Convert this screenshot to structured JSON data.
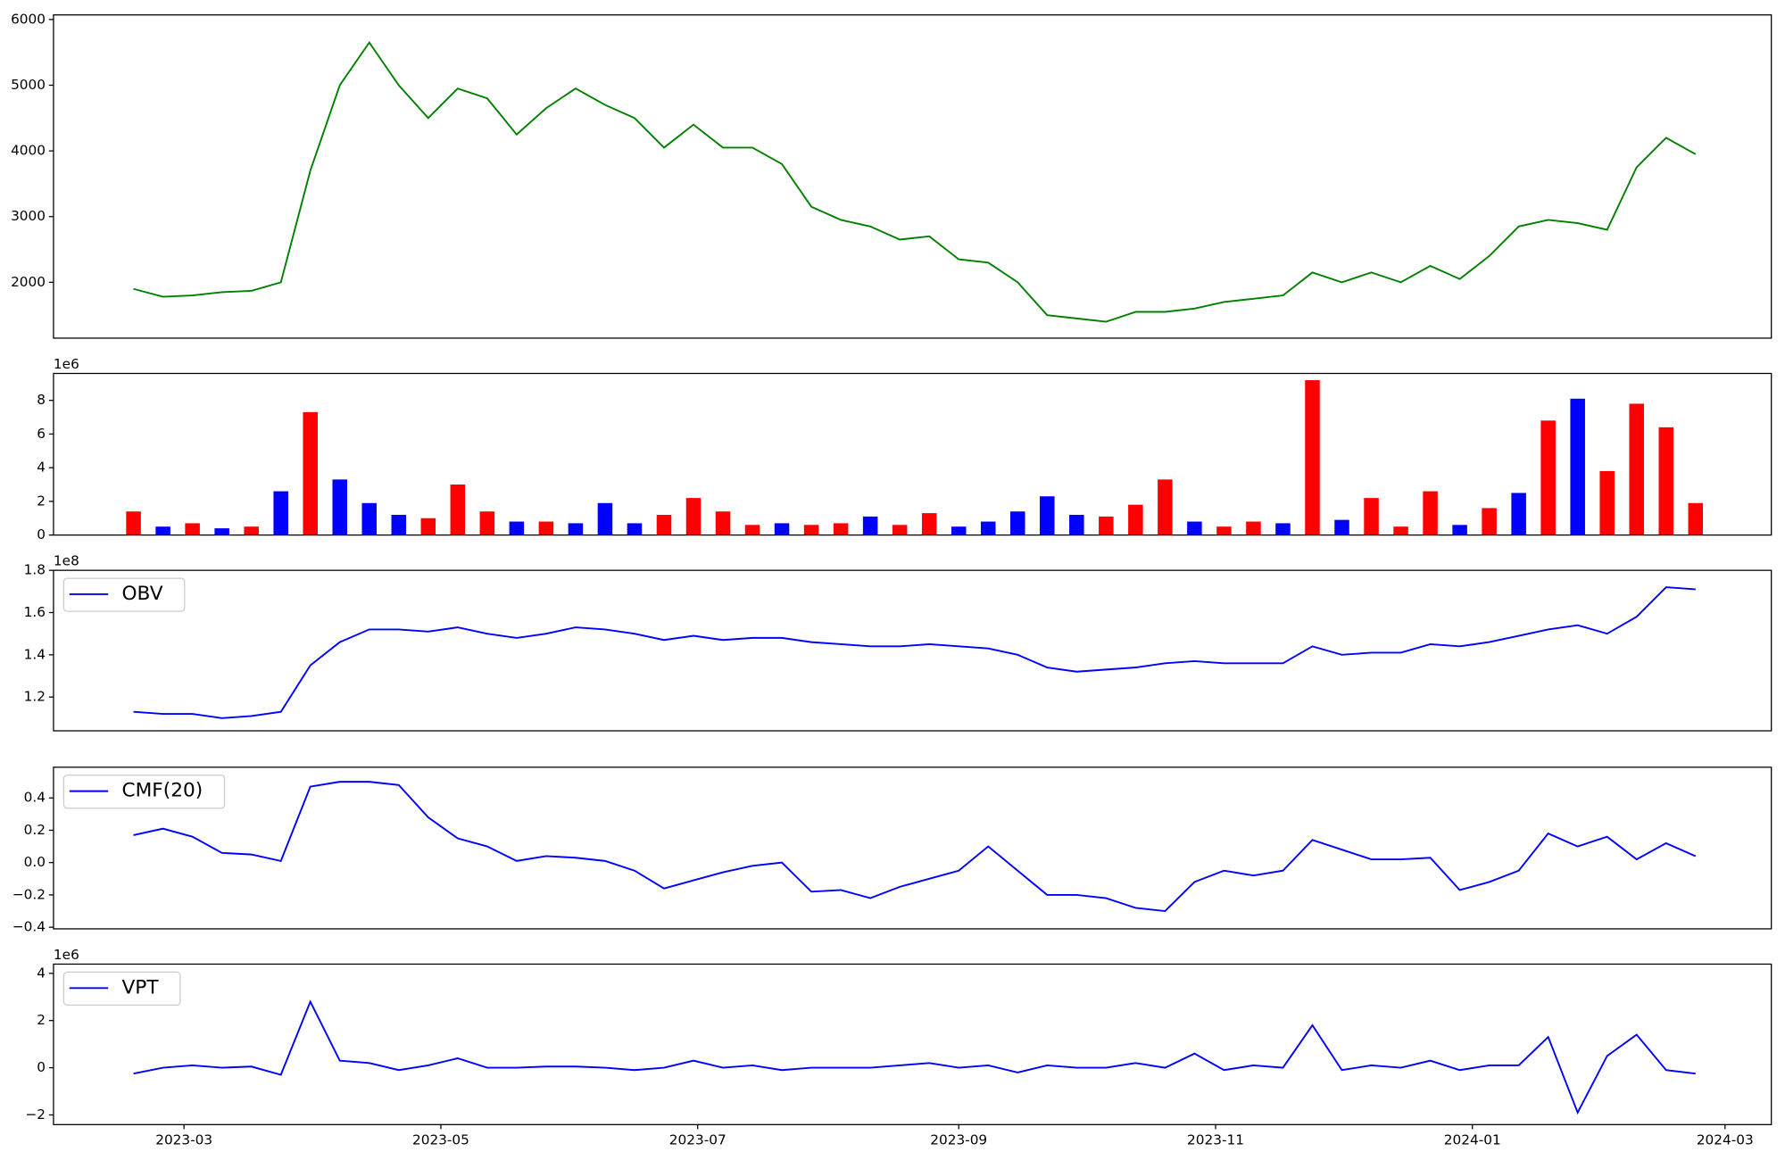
{
  "chart_data": [
    {
      "type": "line",
      "color": "#008000",
      "x": [
        "2023-02-17",
        "2023-02-24",
        "2023-03-03",
        "2023-03-10",
        "2023-03-17",
        "2023-03-24",
        "2023-03-31",
        "2023-04-07",
        "2023-04-14",
        "2023-04-21",
        "2023-04-28",
        "2023-05-05",
        "2023-05-12",
        "2023-05-19",
        "2023-05-26",
        "2023-06-02",
        "2023-06-09",
        "2023-06-16",
        "2023-06-23",
        "2023-06-30",
        "2023-07-07",
        "2023-07-14",
        "2023-07-21",
        "2023-07-28",
        "2023-08-04",
        "2023-08-11",
        "2023-08-18",
        "2023-08-25",
        "2023-09-01",
        "2023-09-08",
        "2023-09-15",
        "2023-09-22",
        "2023-09-29",
        "2023-10-06",
        "2023-10-13",
        "2023-10-20",
        "2023-10-27",
        "2023-11-03",
        "2023-11-10",
        "2023-11-17",
        "2023-11-24",
        "2023-12-01",
        "2023-12-08",
        "2023-12-15",
        "2023-12-22",
        "2023-12-29",
        "2024-01-05",
        "2024-01-12",
        "2024-01-19",
        "2024-01-26",
        "2024-02-02",
        "2024-02-09",
        "2024-02-16",
        "2024-02-23"
      ],
      "values": [
        1900,
        1780,
        1800,
        1850,
        1870,
        2000,
        3700,
        5000,
        5650,
        5000,
        4500,
        4950,
        4800,
        4250,
        4650,
        4950,
        4700,
        4500,
        4050,
        4400,
        4050,
        4050,
        3800,
        3150,
        2950,
        2850,
        2650,
        2700,
        2350,
        2300,
        2000,
        1500,
        1450,
        1400,
        1550,
        1550,
        1600,
        1700,
        1750,
        1800,
        2150,
        2000,
        2150,
        2000,
        2250,
        2050,
        2400,
        2850,
        2950,
        2900,
        2800,
        3750,
        4200,
        3950
      ],
      "ylim": [
        1150,
        6070
      ],
      "yticks": [
        2000,
        3000,
        4000,
        5000,
        6000
      ]
    },
    {
      "type": "bar",
      "y_offset_label": "1e6",
      "values": [
        1.4,
        0.5,
        0.7,
        0.4,
        0.5,
        2.6,
        7.3,
        3.3,
        1.9,
        1.2,
        1.0,
        3.0,
        1.4,
        0.8,
        0.8,
        0.7,
        1.9,
        0.7,
        1.2,
        2.2,
        1.4,
        0.6,
        0.7,
        0.6,
        0.7,
        1.1,
        0.6,
        1.3,
        0.5,
        0.8,
        1.4,
        2.3,
        1.2,
        1.1,
        1.8,
        3.3,
        0.8,
        0.5,
        0.8,
        0.7,
        9.2,
        0.9,
        2.2,
        0.5,
        2.6,
        0.6,
        1.6,
        2.5,
        6.8,
        8.1,
        3.8,
        7.8,
        6.4,
        1.9
      ],
      "colors": [
        "#ff0000",
        "#0000ff",
        "#ff0000",
        "#0000ff",
        "#ff0000",
        "#0000ff",
        "#ff0000",
        "#0000ff",
        "#0000ff",
        "#0000ff",
        "#ff0000",
        "#ff0000",
        "#ff0000",
        "#0000ff",
        "#ff0000",
        "#0000ff",
        "#0000ff",
        "#0000ff",
        "#ff0000",
        "#ff0000",
        "#ff0000",
        "#ff0000",
        "#0000ff",
        "#ff0000",
        "#ff0000",
        "#0000ff",
        "#ff0000",
        "#ff0000",
        "#0000ff",
        "#0000ff",
        "#0000ff",
        "#0000ff",
        "#0000ff",
        "#ff0000",
        "#ff0000",
        "#ff0000",
        "#0000ff",
        "#ff0000",
        "#ff0000",
        "#0000ff",
        "#ff0000",
        "#0000ff",
        "#ff0000",
        "#ff0000",
        "#ff0000",
        "#0000ff",
        "#ff0000",
        "#0000ff",
        "#ff0000",
        "#0000ff",
        "#ff0000",
        "#ff0000",
        "#ff0000",
        "#ff0000"
      ],
      "ylim": [
        0,
        9.6
      ],
      "yticks": [
        0,
        2,
        4,
        6,
        8
      ]
    },
    {
      "type": "line",
      "y_offset_label": "1e8",
      "legend": "upper left",
      "series": [
        {
          "name": "OBV",
          "color": "#0000ff",
          "values": [
            1.13,
            1.12,
            1.12,
            1.1,
            1.11,
            1.13,
            1.35,
            1.46,
            1.52,
            1.52,
            1.51,
            1.53,
            1.5,
            1.48,
            1.5,
            1.53,
            1.52,
            1.5,
            1.47,
            1.49,
            1.47,
            1.48,
            1.48,
            1.46,
            1.45,
            1.44,
            1.44,
            1.45,
            1.44,
            1.43,
            1.4,
            1.34,
            1.32,
            1.33,
            1.34,
            1.36,
            1.37,
            1.36,
            1.36,
            1.36,
            1.44,
            1.4,
            1.41,
            1.41,
            1.45,
            1.44,
            1.46,
            1.49,
            1.52,
            1.54,
            1.5,
            1.58,
            1.72,
            1.71
          ]
        }
      ],
      "ylim": [
        1.04,
        1.8
      ],
      "yticks": [
        1.2,
        1.4,
        1.6,
        1.8
      ]
    },
    {
      "type": "line",
      "legend": "upper left",
      "series": [
        {
          "name": "CMF(20)",
          "color": "#0000ff",
          "values": [
            0.17,
            0.21,
            0.16,
            0.06,
            0.05,
            0.01,
            0.47,
            0.5,
            0.5,
            0.48,
            0.28,
            0.15,
            0.1,
            0.01,
            0.04,
            0.03,
            0.01,
            -0.05,
            -0.16,
            -0.11,
            -0.06,
            -0.02,
            0.0,
            -0.18,
            -0.17,
            -0.22,
            -0.15,
            -0.1,
            -0.05,
            0.1,
            -0.05,
            -0.2,
            -0.2,
            -0.22,
            -0.28,
            -0.3,
            -0.12,
            -0.05,
            -0.08,
            -0.05,
            0.14,
            0.08,
            0.02,
            0.02,
            0.03,
            -0.17,
            -0.12,
            -0.05,
            0.18,
            0.1,
            0.16,
            0.02,
            0.12,
            0.04
          ]
        }
      ],
      "ylim": [
        -0.41,
        0.59
      ],
      "yticks": [
        {
          "value": -0.4,
          "label": "−0.4"
        },
        {
          "value": -0.2,
          "label": "−0.2"
        },
        {
          "value": 0,
          "label": "0.0"
        },
        0.2,
        0.4
      ]
    },
    {
      "type": "line",
      "y_offset_label": "1e6",
      "legend": "upper left",
      "series": [
        {
          "name": "VPT",
          "color": "#0000ff",
          "values": [
            -0.25,
            0.0,
            0.1,
            0.0,
            0.05,
            -0.3,
            2.8,
            0.3,
            0.2,
            -0.1,
            0.1,
            0.4,
            0.0,
            0.0,
            0.05,
            0.05,
            0.0,
            -0.1,
            0.0,
            0.3,
            0.0,
            0.1,
            -0.1,
            0.0,
            0.0,
            0.0,
            0.1,
            0.2,
            0.0,
            0.1,
            -0.2,
            0.1,
            0.0,
            0.0,
            0.2,
            0.0,
            0.6,
            -0.1,
            0.1,
            0.0,
            1.8,
            -0.1,
            0.1,
            0.0,
            0.3,
            -0.1,
            0.1,
            0.1,
            1.3,
            -1.9,
            0.5,
            1.4,
            -0.1,
            -0.25
          ]
        }
      ],
      "ylim": [
        -2.41,
        4.39
      ],
      "yticks": [
        {
          "value": -2,
          "label": "−2"
        },
        0,
        2,
        4
      ],
      "xlim": [
        "2023-01-29",
        "2024-03-12"
      ],
      "xticks": [
        {
          "value": "2023-03-01",
          "label": "2023-03"
        },
        {
          "value": "2023-05-01",
          "label": "2023-05"
        },
        {
          "value": "2023-07-01",
          "label": "2023-07"
        },
        {
          "value": "2023-09-01",
          "label": "2023-09"
        },
        {
          "value": "2023-11-01",
          "label": "2023-11"
        },
        {
          "value": "2024-01-01",
          "label": "2024-01"
        },
        {
          "value": "2024-03-01",
          "label": "2024-03"
        }
      ]
    }
  ]
}
